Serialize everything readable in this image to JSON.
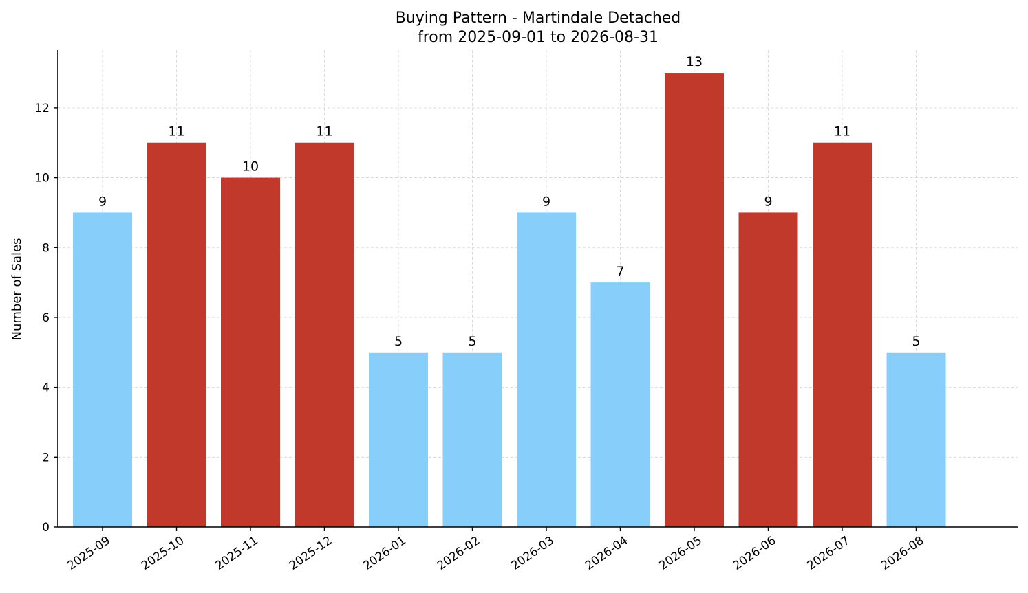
{
  "chart_data": {
    "type": "bar",
    "title": "Buying Pattern - Martindale Detached",
    "subtitle": "from 2025-09-01 to 2026-08-31",
    "xlabel": "",
    "ylabel": "Number of Sales",
    "categories": [
      "2025-09",
      "2025-10",
      "2025-11",
      "2025-12",
      "2026-01",
      "2026-02",
      "2026-03",
      "2026-04",
      "2026-05",
      "2026-06",
      "2026-07",
      "2026-08"
    ],
    "values": [
      9,
      11,
      10,
      11,
      5,
      5,
      9,
      7,
      13,
      9,
      11,
      5
    ],
    "bar_colors": [
      "#87CEFA",
      "#C0392B",
      "#C0392B",
      "#C0392B",
      "#87CEFA",
      "#87CEFA",
      "#87CEFA",
      "#87CEFA",
      "#C0392B",
      "#C0392B",
      "#C0392B",
      "#87CEFA"
    ],
    "ylim": [
      0,
      13.65
    ],
    "yticks": [
      0,
      2,
      4,
      6,
      8,
      10,
      12
    ],
    "grid": true,
    "legend": "none"
  }
}
